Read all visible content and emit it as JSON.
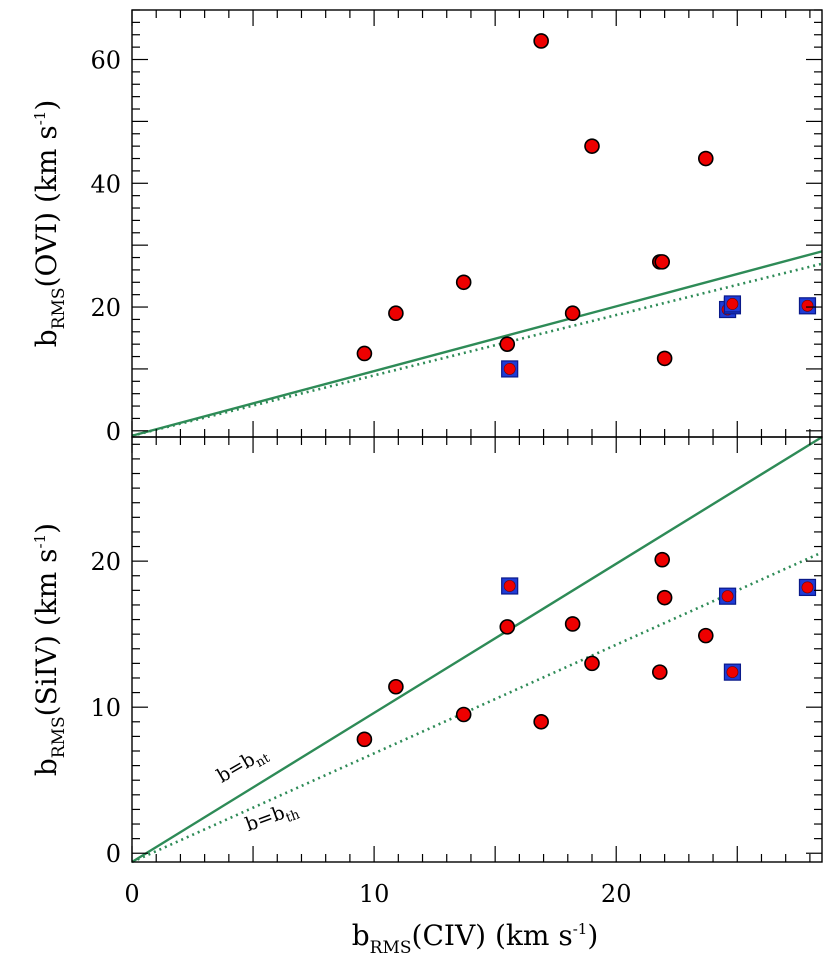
{
  "chart_data": [
    {
      "type": "scatter",
      "panel": "top",
      "ylabel": {
        "main": "b",
        "sub": "RMS",
        "rest": "(OVI)  (km  s",
        "sup": "-1",
        "close": ")"
      },
      "xlim": [
        0,
        28.5
      ],
      "ylim": [
        -1,
        68
      ],
      "yticks": [
        0,
        20,
        40,
        60
      ],
      "xticks": [
        0,
        10,
        20
      ],
      "grid": false,
      "series": [
        {
          "marker": "circle",
          "color": "#ee0000",
          "points": [
            [
              9.6,
              12.5
            ],
            [
              10.9,
              19
            ],
            [
              13.7,
              24
            ],
            [
              15.5,
              14
            ],
            [
              16.9,
              63
            ],
            [
              18.2,
              19
            ],
            [
              19,
              46
            ],
            [
              21.8,
              27.3
            ],
            [
              21.9,
              27.3
            ],
            [
              22,
              11.7
            ],
            [
              23.7,
              44
            ]
          ]
        },
        {
          "marker": "square-circle",
          "color": "#1f3bd6",
          "points": [
            [
              15.6,
              10
            ],
            [
              24.6,
              19.6
            ],
            [
              24.8,
              20.2
            ],
            [
              24.8,
              20.5
            ],
            [
              27.9,
              20.2
            ]
          ]
        }
      ],
      "lines": [
        {
          "style": "solid",
          "color": "#2e8b57",
          "points": [
            [
              0,
              -0.8
            ],
            [
              28.5,
              29
            ]
          ]
        },
        {
          "style": "dotted",
          "color": "#2e8b57",
          "points": [
            [
              0,
              -0.8
            ],
            [
              28.5,
              27
            ]
          ]
        }
      ]
    },
    {
      "type": "scatter",
      "panel": "bottom",
      "xlabel": {
        "main": "b",
        "sub": "RMS",
        "rest": "(CIV)  (km  s",
        "sup": "-1",
        "close": ")"
      },
      "ylabel": {
        "main": "b",
        "sub": "RMS",
        "rest": "(SiIV)  (km  s",
        "sup": "-1",
        "close": ")"
      },
      "xlim": [
        0,
        28.5
      ],
      "ylim": [
        -0.6,
        28.5
      ],
      "yticks": [
        0,
        10,
        20
      ],
      "xticks": [
        0,
        10,
        20
      ],
      "grid": false,
      "series": [
        {
          "marker": "circle",
          "color": "#ee0000",
          "points": [
            [
              9.6,
              7.8
            ],
            [
              10.9,
              11.4
            ],
            [
              13.7,
              9.5
            ],
            [
              15.5,
              15.5
            ],
            [
              16.9,
              9
            ],
            [
              18.2,
              15.7
            ],
            [
              19,
              13
            ],
            [
              21.8,
              12.4
            ],
            [
              21.9,
              20.1
            ],
            [
              22,
              17.5
            ],
            [
              23.7,
              14.9
            ]
          ]
        },
        {
          "marker": "square-circle",
          "color": "#1f3bd6",
          "points": [
            [
              15.6,
              18.3
            ],
            [
              24.6,
              17.6
            ],
            [
              24.8,
              12.4
            ],
            [
              27.9,
              18.2
            ]
          ]
        }
      ],
      "lines": [
        {
          "style": "solid",
          "color": "#2e8b57",
          "points": [
            [
              0,
              -0.6
            ],
            [
              28.5,
              28.5
            ]
          ]
        },
        {
          "style": "dotted",
          "color": "#2e8b57",
          "points": [
            [
              0,
              -0.6
            ],
            [
              28.5,
              20.6
            ]
          ]
        }
      ],
      "annotations": [
        {
          "id": "bnt",
          "text": "b=b",
          "sub": "nt",
          "x": 3.7,
          "y": 4.8,
          "rotate": -30
        },
        {
          "id": "bth",
          "text": "b=b",
          "sub": "th",
          "x": 4.8,
          "y": 1.5,
          "rotate": -20
        }
      ]
    }
  ]
}
